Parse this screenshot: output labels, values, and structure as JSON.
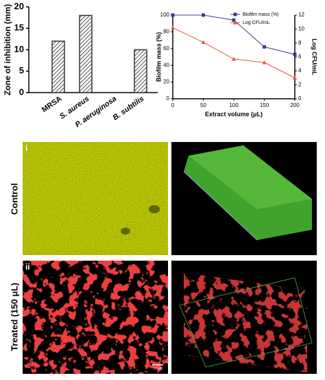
{
  "chart_data": [
    {
      "type": "bar",
      "y_label": "Zone of inhibition (mm)",
      "categories": [
        "MRSA",
        "S. aureus",
        "P. aeruginosa",
        "B. subtilis"
      ],
      "values": [
        12,
        18,
        0,
        10
      ],
      "color": "#333333",
      "ylim": [
        0,
        20
      ],
      "yticks": [
        0,
        5,
        10,
        15,
        20
      ]
    },
    {
      "type": "line",
      "x_label": "Extract volume (μL)",
      "y_label": "Biofilm mass (%)",
      "y2_label": "Log CFU/mL",
      "x": [
        0,
        50,
        100,
        150,
        200
      ],
      "series": [
        {
          "name": "Biofilm mass (%)",
          "color": "#3c3c8c",
          "marker": "square",
          "values": [
            100,
            100,
            94,
            62,
            53
          ]
        },
        {
          "name": "Log CFU/mL",
          "color": "#e8553a",
          "marker": "triangle",
          "axis": "y2",
          "values": [
            10.2,
            8.1,
            5.7,
            5.2,
            3.0
          ]
        }
      ],
      "xlim": [
        0,
        200
      ],
      "xticks": [
        0,
        50,
        100,
        150,
        200
      ],
      "ylim": [
        0,
        100
      ],
      "yticks": [
        0,
        20,
        40,
        60,
        80,
        100
      ],
      "y2lim": [
        0,
        12
      ],
      "y2ticks": [
        0,
        2,
        4,
        6,
        8,
        10,
        12
      ],
      "legend": "top-right"
    }
  ],
  "panels": {
    "row_labels": [
      "Control",
      "Treated (150 μL)"
    ],
    "panel_labels": [
      "i",
      "ii"
    ],
    "scale_bar": "10 μm"
  }
}
